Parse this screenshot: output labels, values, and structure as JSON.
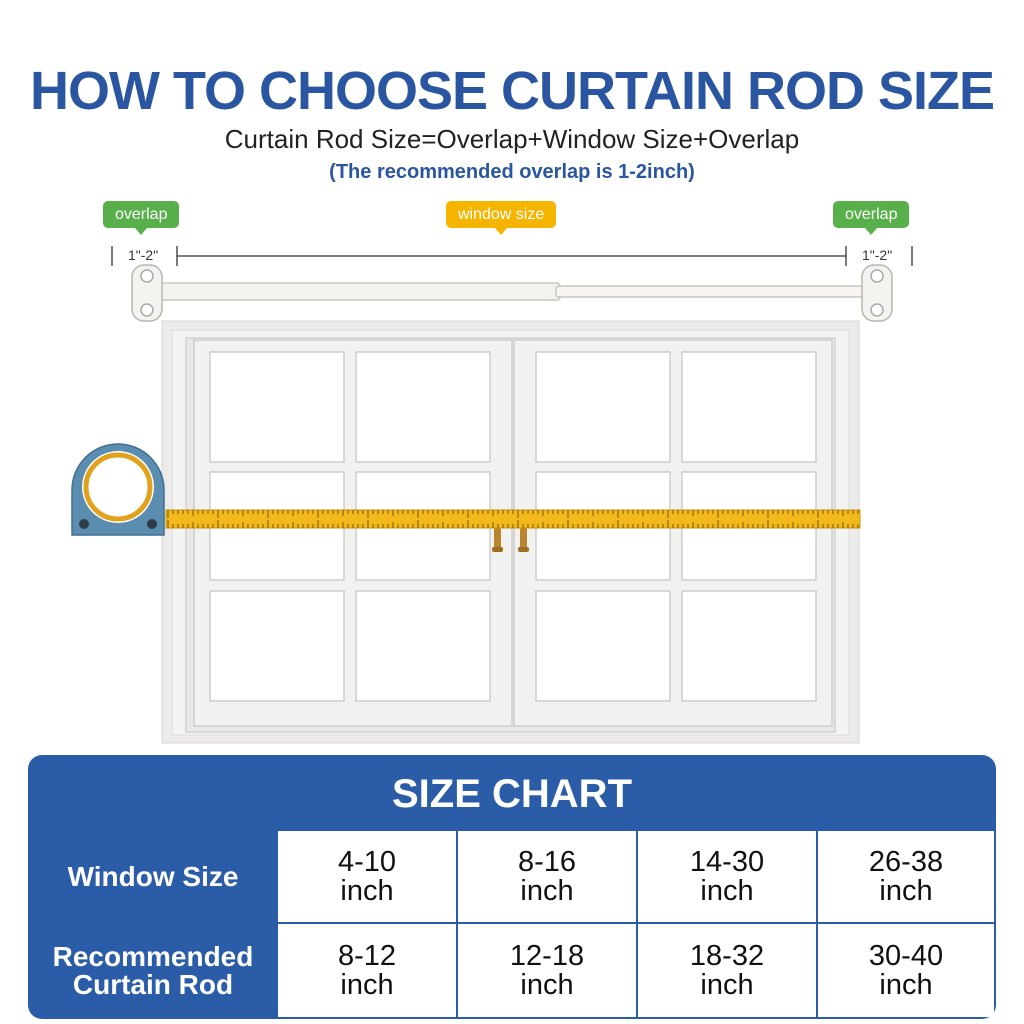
{
  "header": {
    "title": "HOW TO CHOOSE CURTAIN ROD SIZE",
    "formula": "Curtain Rod Size=Overlap+Window Size+Overlap",
    "note": "(The recommended overlap is 1-2inch)"
  },
  "diagram": {
    "left_tag": "overlap",
    "center_tag": "window size",
    "right_tag": "overlap",
    "left_dim": "1\"-2\"",
    "right_dim": "1\"-2\"",
    "colors": {
      "overlap": "#58b04a",
      "window": "#f5b400",
      "tape": "#f2b81c",
      "tape_case": "#5d8fb0"
    }
  },
  "size_chart": {
    "title": "SIZE CHART",
    "row1_label": "Window Size",
    "row2_label": "Recommended\nCurtain Rod",
    "window_sizes": [
      "4-10\ninch",
      "8-16\ninch",
      "14-30\ninch",
      "26-38\ninch"
    ],
    "rod_sizes": [
      "8-12\ninch",
      "12-18\ninch",
      "18-32\ninch",
      "30-40\ninch"
    ],
    "colors": {
      "header": "#2a5ca8"
    }
  }
}
